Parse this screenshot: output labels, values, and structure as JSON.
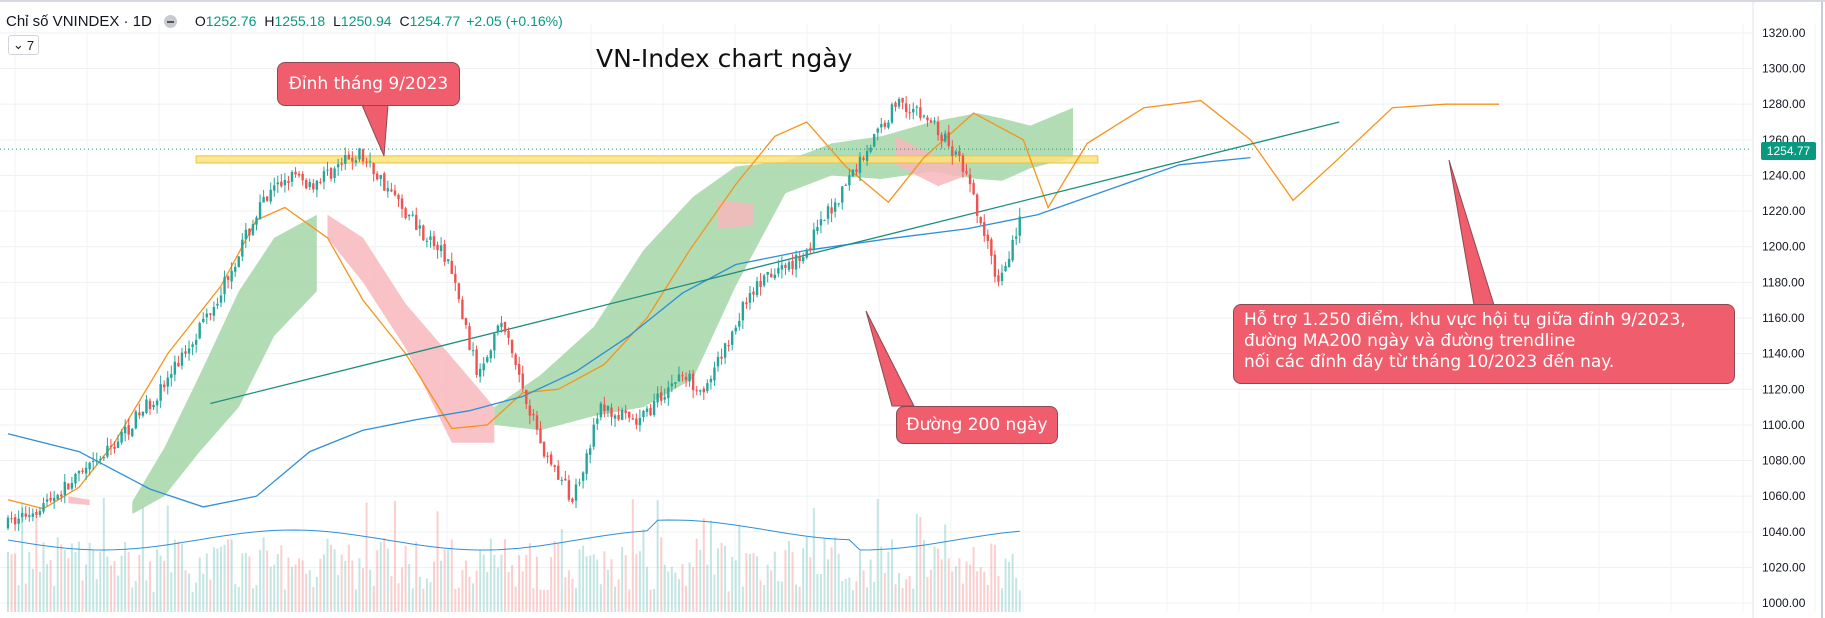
{
  "legend": {
    "symbol": "Chỉ số VNINDEX · 1D",
    "o_label": "O",
    "open": "1252.76",
    "h_label": "H",
    "high": "1255.18",
    "l_label": "L",
    "low": "1250.94",
    "c_label": "C",
    "close": "1254.77",
    "change": "+2.05 (+0.16%)"
  },
  "indicator_toggle": {
    "chevron": "⌄",
    "count": "7"
  },
  "price_tag": "1254.77",
  "colors": {
    "up": "#26a69a",
    "down": "#ef5350",
    "ma_short": "#f7931a",
    "ma200": "#2f8fd8",
    "trendline": "#1b8f7e",
    "cloud_bull": "#a5d6a7",
    "cloud_bear": "#f7b7bc",
    "support_band": "#fde37e",
    "callout": "#f05d6c"
  },
  "chart_data": {
    "type": "candlestick",
    "title": "VN-Index chart ngày",
    "ylim": [
      995,
      1325
    ],
    "y_ticks": [
      "1320.00",
      "1300.00",
      "1280.00",
      "1260.00",
      "1240.00",
      "1220.00",
      "1200.00",
      "1180.00",
      "1160.00",
      "1140.00",
      "1120.00",
      "1100.00",
      "1080.00",
      "1060.00",
      "1040.00",
      "1020.00",
      "1000.00"
    ],
    "n_bars": 355,
    "price_anchors": [
      [
        0,
        1043
      ],
      [
        12,
        1057
      ],
      [
        26,
        1078
      ],
      [
        45,
        1122
      ],
      [
        60,
        1172
      ],
      [
        72,
        1222
      ],
      [
        80,
        1240
      ],
      [
        86,
        1235
      ],
      [
        100,
        1252
      ],
      [
        106,
        1238
      ],
      [
        112,
        1222
      ],
      [
        125,
        1192
      ],
      [
        133,
        1130
      ],
      [
        140,
        1158
      ],
      [
        152,
        1085
      ],
      [
        160,
        1058
      ],
      [
        168,
        1110
      ],
      [
        178,
        1100
      ],
      [
        190,
        1128
      ],
      [
        198,
        1120
      ],
      [
        210,
        1175
      ],
      [
        225,
        1196
      ],
      [
        240,
        1245
      ],
      [
        252,
        1283
      ],
      [
        262,
        1268
      ],
      [
        270,
        1245
      ],
      [
        280,
        1180
      ],
      [
        293,
        1255
      ],
      [
        306,
        1292
      ],
      [
        316,
        1268
      ],
      [
        328,
        1295
      ],
      [
        336,
        1268
      ],
      [
        348,
        1243
      ],
      [
        352,
        1237
      ],
      [
        360,
        1208
      ],
      [
        372,
        1258
      ],
      [
        384,
        1278
      ],
      [
        398,
        1285
      ],
      [
        404,
        1291
      ],
      [
        410,
        1290
      ],
      [
        420,
        1254
      ]
    ],
    "candle_span": {
      "first_index": 0,
      "last_index": 285
    },
    "cloud_bull_segments": [
      [
        [
          35,
          1050,
          1057
        ],
        [
          44,
          1060,
          1087
        ],
        [
          54,
          1085,
          1128
        ],
        [
          65,
          1110,
          1175
        ],
        [
          75,
          1150,
          1205
        ],
        [
          87,
          1175,
          1218
        ]
      ],
      [
        [
          137,
          1100,
          1110
        ],
        [
          150,
          1097,
          1128
        ],
        [
          165,
          1105,
          1155
        ],
        [
          179,
          1110,
          1198
        ],
        [
          193,
          1126,
          1228
        ],
        [
          205,
          1178,
          1245
        ],
        [
          219,
          1230,
          1248
        ],
        [
          232,
          1240,
          1258
        ],
        [
          246,
          1238,
          1262
        ],
        [
          260,
          1242,
          1270
        ],
        [
          273,
          1238,
          1275
        ],
        [
          280,
          1237,
          1272
        ],
        [
          288,
          1244,
          1268
        ],
        [
          300,
          1250,
          1278
        ]
      ]
    ],
    "cloud_bear_segments": [
      [
        [
          17,
          1056,
          1060
        ],
        [
          23,
          1055,
          1058
        ]
      ],
      [
        [
          90,
          1205,
          1218
        ],
        [
          100,
          1180,
          1205
        ],
        [
          112,
          1143,
          1168
        ],
        [
          125,
          1090,
          1138
        ],
        [
          137,
          1090,
          1110
        ]
      ],
      [
        [
          200,
          1210,
          1226
        ],
        [
          210,
          1212,
          1224
        ]
      ],
      [
        [
          250,
          1246,
          1262
        ],
        [
          262,
          1234,
          1250
        ],
        [
          270,
          1240,
          1248
        ]
      ]
    ],
    "ma_short": [
      [
        0,
        1058
      ],
      [
        10,
        1053
      ],
      [
        20,
        1065
      ],
      [
        30,
        1090
      ],
      [
        45,
        1140
      ],
      [
        60,
        1178
      ],
      [
        70,
        1215
      ],
      [
        78,
        1222
      ],
      [
        90,
        1205
      ],
      [
        100,
        1170
      ],
      [
        112,
        1140
      ],
      [
        125,
        1098
      ],
      [
        135,
        1100
      ],
      [
        145,
        1118
      ],
      [
        155,
        1120
      ],
      [
        168,
        1134
      ],
      [
        180,
        1160
      ],
      [
        192,
        1198
      ],
      [
        205,
        1235
      ],
      [
        216,
        1262
      ],
      [
        225,
        1270
      ],
      [
        236,
        1245
      ],
      [
        248,
        1225
      ],
      [
        258,
        1250
      ],
      [
        272,
        1275
      ],
      [
        286,
        1260
      ],
      [
        293,
        1222
      ],
      [
        304,
        1258
      ],
      [
        320,
        1278
      ],
      [
        336,
        1282
      ],
      [
        350,
        1260
      ],
      [
        362,
        1226
      ],
      [
        374,
        1248
      ],
      [
        390,
        1278
      ],
      [
        405,
        1280
      ],
      [
        420,
        1280
      ]
    ],
    "ma200": [
      [
        0,
        1095
      ],
      [
        20,
        1085
      ],
      [
        40,
        1064
      ],
      [
        55,
        1054
      ],
      [
        70,
        1060
      ],
      [
        85,
        1085
      ],
      [
        100,
        1097
      ],
      [
        115,
        1103
      ],
      [
        130,
        1108
      ],
      [
        145,
        1116
      ],
      [
        160,
        1130
      ],
      [
        175,
        1150
      ],
      [
        190,
        1174
      ],
      [
        205,
        1190
      ],
      [
        225,
        1198
      ],
      [
        250,
        1205
      ],
      [
        270,
        1210
      ],
      [
        290,
        1218
      ],
      [
        310,
        1232
      ],
      [
        330,
        1246
      ],
      [
        350,
        1250
      ]
    ],
    "trendline": {
      "from": [
        57,
        1112
      ],
      "to": [
        375,
        1270
      ]
    },
    "support_band": {
      "from_index": 53,
      "to_index": 307,
      "low": 1247,
      "high": 1251
    },
    "volume_scale": 1
  },
  "annotations": {
    "top_callout": "Đỉnh tháng 9/2023",
    "ma_callout": "Đường 200 ngày",
    "support_lines": [
      "Hỗ trợ 1.250 điểm, khu vực hội tụ giữa đỉnh 9/2023,",
      "đường MA200 ngày và đường trendline",
      "nối các đỉnh đáy từ tháng 10/2023 đến nay."
    ]
  }
}
